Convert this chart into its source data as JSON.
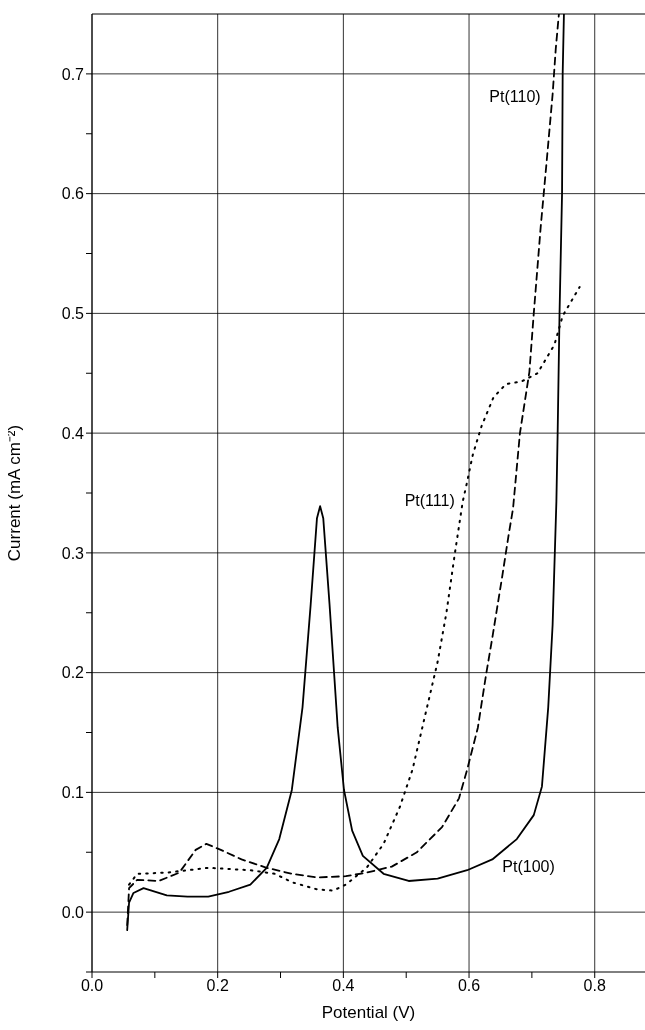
{
  "chart_data": {
    "type": "line",
    "xlabel": "Potential (V)",
    "ylabel": "Current (mA cm⁻²)",
    "xlim": [
      0,
      0.88
    ],
    "ylim": [
      -0.05,
      0.75
    ],
    "xticks": [
      {
        "value": 0,
        "label": "0.0"
      },
      {
        "value": 0.1,
        "label": null
      },
      0.2,
      {
        "value": 0.3,
        "label": null
      },
      0.4,
      {
        "value": 0.5,
        "label": null
      },
      0.6,
      {
        "value": 0.7,
        "label": null
      },
      0.8
    ],
    "yticks": [
      {
        "value": -0.05,
        "label": null
      },
      {
        "value": 0,
        "label": "0.0"
      },
      {
        "value": 0.05,
        "label": null
      },
      0.1,
      {
        "value": 0.15,
        "label": null
      },
      0.2,
      {
        "value": 0.25,
        "label": null
      },
      0.3,
      {
        "value": 0.35,
        "label": null
      },
      0.4,
      {
        "value": 0.45,
        "label": null
      },
      0.5,
      {
        "value": 0.55,
        "label": null
      },
      0.6,
      {
        "value": 0.65,
        "label": null
      },
      0.7
    ],
    "grid": true,
    "marker": "none",
    "series": [
      {
        "name": "Pt(100)",
        "color": "#000000",
        "line_style": "solid",
        "x": [
          0.056,
          0.059,
          0.066,
          0.082,
          0.119,
          0.152,
          0.185,
          0.218,
          0.252,
          0.278,
          0.298,
          0.318,
          0.335,
          0.348,
          0.358,
          0.363,
          0.368,
          0.378,
          0.391,
          0.401,
          0.414,
          0.431,
          0.464,
          0.504,
          0.55,
          0.597,
          0.637,
          0.676,
          0.703,
          0.716,
          0.726,
          0.733,
          0.739,
          0.741,
          0.744,
          0.748,
          0.749,
          0.751
        ],
        "values": [
          -0.015,
          0.008,
          0.016,
          0.02,
          0.014,
          0.013,
          0.013,
          0.017,
          0.023,
          0.037,
          0.061,
          0.102,
          0.171,
          0.257,
          0.329,
          0.339,
          0.329,
          0.257,
          0.154,
          0.102,
          0.068,
          0.047,
          0.032,
          0.026,
          0.028,
          0.035,
          0.044,
          0.061,
          0.081,
          0.105,
          0.171,
          0.24,
          0.343,
          0.4,
          0.5,
          0.6,
          0.7,
          0.75
        ]
      },
      {
        "name": "Pt(110)",
        "color": "#000000",
        "line_style": "dashed",
        "x": [
          0.056,
          0.059,
          0.072,
          0.106,
          0.139,
          0.165,
          0.182,
          0.205,
          0.238,
          0.278,
          0.318,
          0.358,
          0.404,
          0.437,
          0.477,
          0.517,
          0.557,
          0.584,
          0.597,
          0.614,
          0.627,
          0.637,
          0.653,
          0.663,
          0.67,
          0.681,
          0.696,
          0.703,
          0.714,
          0.723,
          0.733,
          0.738,
          0.743
        ],
        "values": [
          -0.011,
          0.02,
          0.027,
          0.026,
          0.033,
          0.052,
          0.057,
          0.052,
          0.044,
          0.037,
          0.032,
          0.029,
          0.03,
          0.033,
          0.038,
          0.05,
          0.071,
          0.095,
          0.119,
          0.154,
          0.198,
          0.229,
          0.281,
          0.315,
          0.337,
          0.4,
          0.451,
          0.5,
          0.572,
          0.624,
          0.683,
          0.721,
          0.75
        ]
      },
      {
        "name": "Pt(111)",
        "color": "#000000",
        "line_style": "dotted",
        "x": [
          0.059,
          0.072,
          0.119,
          0.185,
          0.252,
          0.291,
          0.318,
          0.358,
          0.384,
          0.404,
          0.437,
          0.464,
          0.49,
          0.51,
          0.53,
          0.55,
          0.564,
          0.577,
          0.59,
          0.596,
          0.606,
          0.62,
          0.639,
          0.659,
          0.683,
          0.709,
          0.736,
          0.749,
          0.776
        ],
        "values": [
          0.023,
          0.032,
          0.033,
          0.037,
          0.035,
          0.032,
          0.025,
          0.019,
          0.018,
          0.023,
          0.037,
          0.057,
          0.088,
          0.119,
          0.164,
          0.209,
          0.25,
          0.298,
          0.343,
          0.357,
          0.382,
          0.406,
          0.43,
          0.441,
          0.443,
          0.45,
          0.474,
          0.498,
          0.522
        ]
      }
    ]
  }
}
